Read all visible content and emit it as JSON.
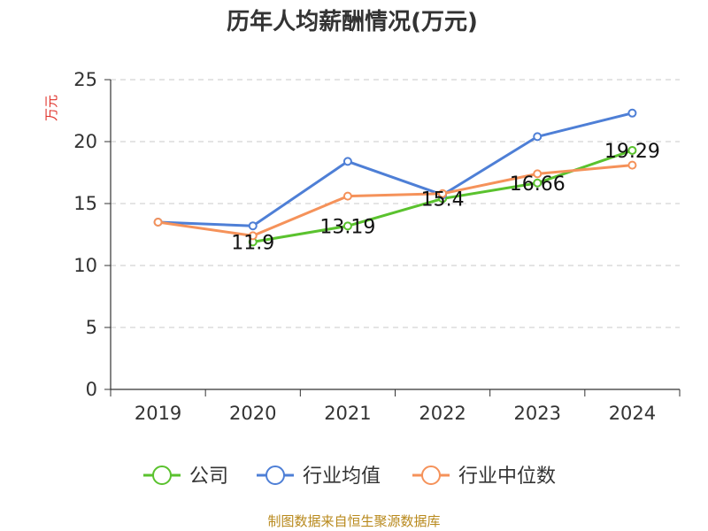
{
  "chart_data": {
    "type": "line",
    "title": "历年人均薪酬情况(万元)",
    "ylabel": "万元",
    "xlabel": "",
    "categories": [
      "2019",
      "2020",
      "2021",
      "2022",
      "2023",
      "2024"
    ],
    "ylim": [
      0,
      25
    ],
    "yticks": [
      0,
      5,
      10,
      15,
      20,
      25
    ],
    "grid": true,
    "legend_position": "bottom",
    "series": [
      {
        "name": "公司",
        "color": "#5ac22e",
        "values": [
          null,
          11.9,
          13.19,
          15.4,
          16.66,
          19.29
        ],
        "labels": [
          null,
          "11.9",
          "13.19",
          "15.4",
          "16.66",
          "19.29"
        ]
      },
      {
        "name": "行业均值",
        "color": "#4e7fd6",
        "values": [
          13.5,
          13.2,
          18.4,
          15.7,
          20.4,
          22.3
        ],
        "labels": []
      },
      {
        "name": "行业中位数",
        "color": "#f5925a",
        "values": [
          13.5,
          12.4,
          15.6,
          15.8,
          17.4,
          18.1
        ],
        "labels": []
      }
    ]
  },
  "footer": {
    "source": "制图数据来自恒生聚源数据库"
  }
}
